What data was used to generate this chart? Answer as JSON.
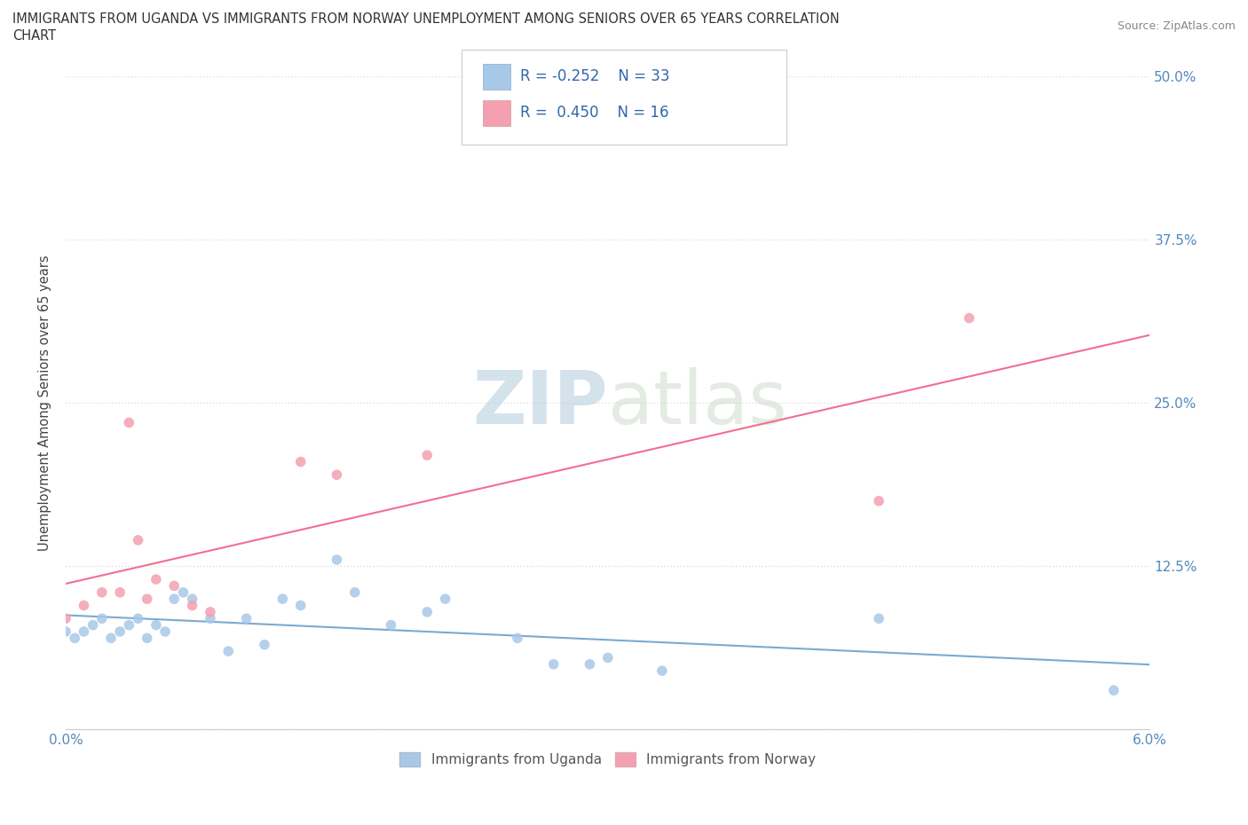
{
  "title": "IMMIGRANTS FROM UGANDA VS IMMIGRANTS FROM NORWAY UNEMPLOYMENT AMONG SENIORS OVER 65 YEARS CORRELATION\nCHART",
  "source": "Source: ZipAtlas.com",
  "ylabel": "Unemployment Among Seniors over 65 years",
  "xlim": [
    0.0,
    6.0
  ],
  "ylim": [
    0.0,
    50.0
  ],
  "xtick_positions": [
    0.0,
    1.0,
    2.0,
    3.0,
    4.0,
    5.0,
    6.0
  ],
  "xtick_labels": [
    "0.0%",
    "",
    "",
    "",
    "",
    "",
    "6.0%"
  ],
  "ytick_positions": [
    0.0,
    12.5,
    25.0,
    37.5,
    50.0
  ],
  "ytick_labels_right": [
    "",
    "12.5%",
    "25.0%",
    "37.5%",
    "50.0%"
  ],
  "uganda_color": "#a8c8e8",
  "norway_color": "#f4a0b0",
  "uganda_line_color": "#7aaad0",
  "norway_line_color": "#f07090",
  "legend_R_uganda": "R = -0.252",
  "legend_N_uganda": "N = 33",
  "legend_R_norway": "R =  0.450",
  "legend_N_norway": "N = 16",
  "legend_label_uganda": "Immigrants from Uganda",
  "legend_label_norway": "Immigrants from Norway",
  "watermark_zip": "ZIP",
  "watermark_atlas": "atlas",
  "watermark_color": "#dce8f0",
  "background_color": "#ffffff",
  "grid_color": "#e0e0e0",
  "uganda_x": [
    0.0,
    0.05,
    0.1,
    0.15,
    0.2,
    0.25,
    0.3,
    0.35,
    0.4,
    0.45,
    0.5,
    0.55,
    0.6,
    0.65,
    0.7,
    0.8,
    0.9,
    1.0,
    1.1,
    1.2,
    1.3,
    1.5,
    1.6,
    1.8,
    2.0,
    2.1,
    2.5,
    2.7,
    2.9,
    3.0,
    3.3,
    4.5,
    5.8
  ],
  "uganda_y": [
    7.5,
    7.0,
    7.5,
    8.0,
    8.5,
    7.0,
    7.5,
    8.0,
    8.5,
    7.0,
    8.0,
    7.5,
    10.0,
    10.5,
    10.0,
    8.5,
    6.0,
    8.5,
    6.5,
    10.0,
    9.5,
    13.0,
    10.5,
    8.0,
    9.0,
    10.0,
    7.0,
    5.0,
    5.0,
    5.5,
    4.5,
    8.5,
    3.0
  ],
  "norway_x": [
    0.0,
    0.1,
    0.2,
    0.3,
    0.35,
    0.4,
    0.45,
    0.5,
    0.6,
    0.7,
    0.8,
    1.3,
    1.5,
    2.0,
    4.5,
    5.0
  ],
  "norway_y": [
    8.5,
    9.5,
    10.5,
    10.5,
    23.5,
    14.5,
    10.0,
    11.5,
    11.0,
    9.5,
    9.0,
    20.5,
    19.5,
    21.0,
    17.5,
    31.5
  ]
}
